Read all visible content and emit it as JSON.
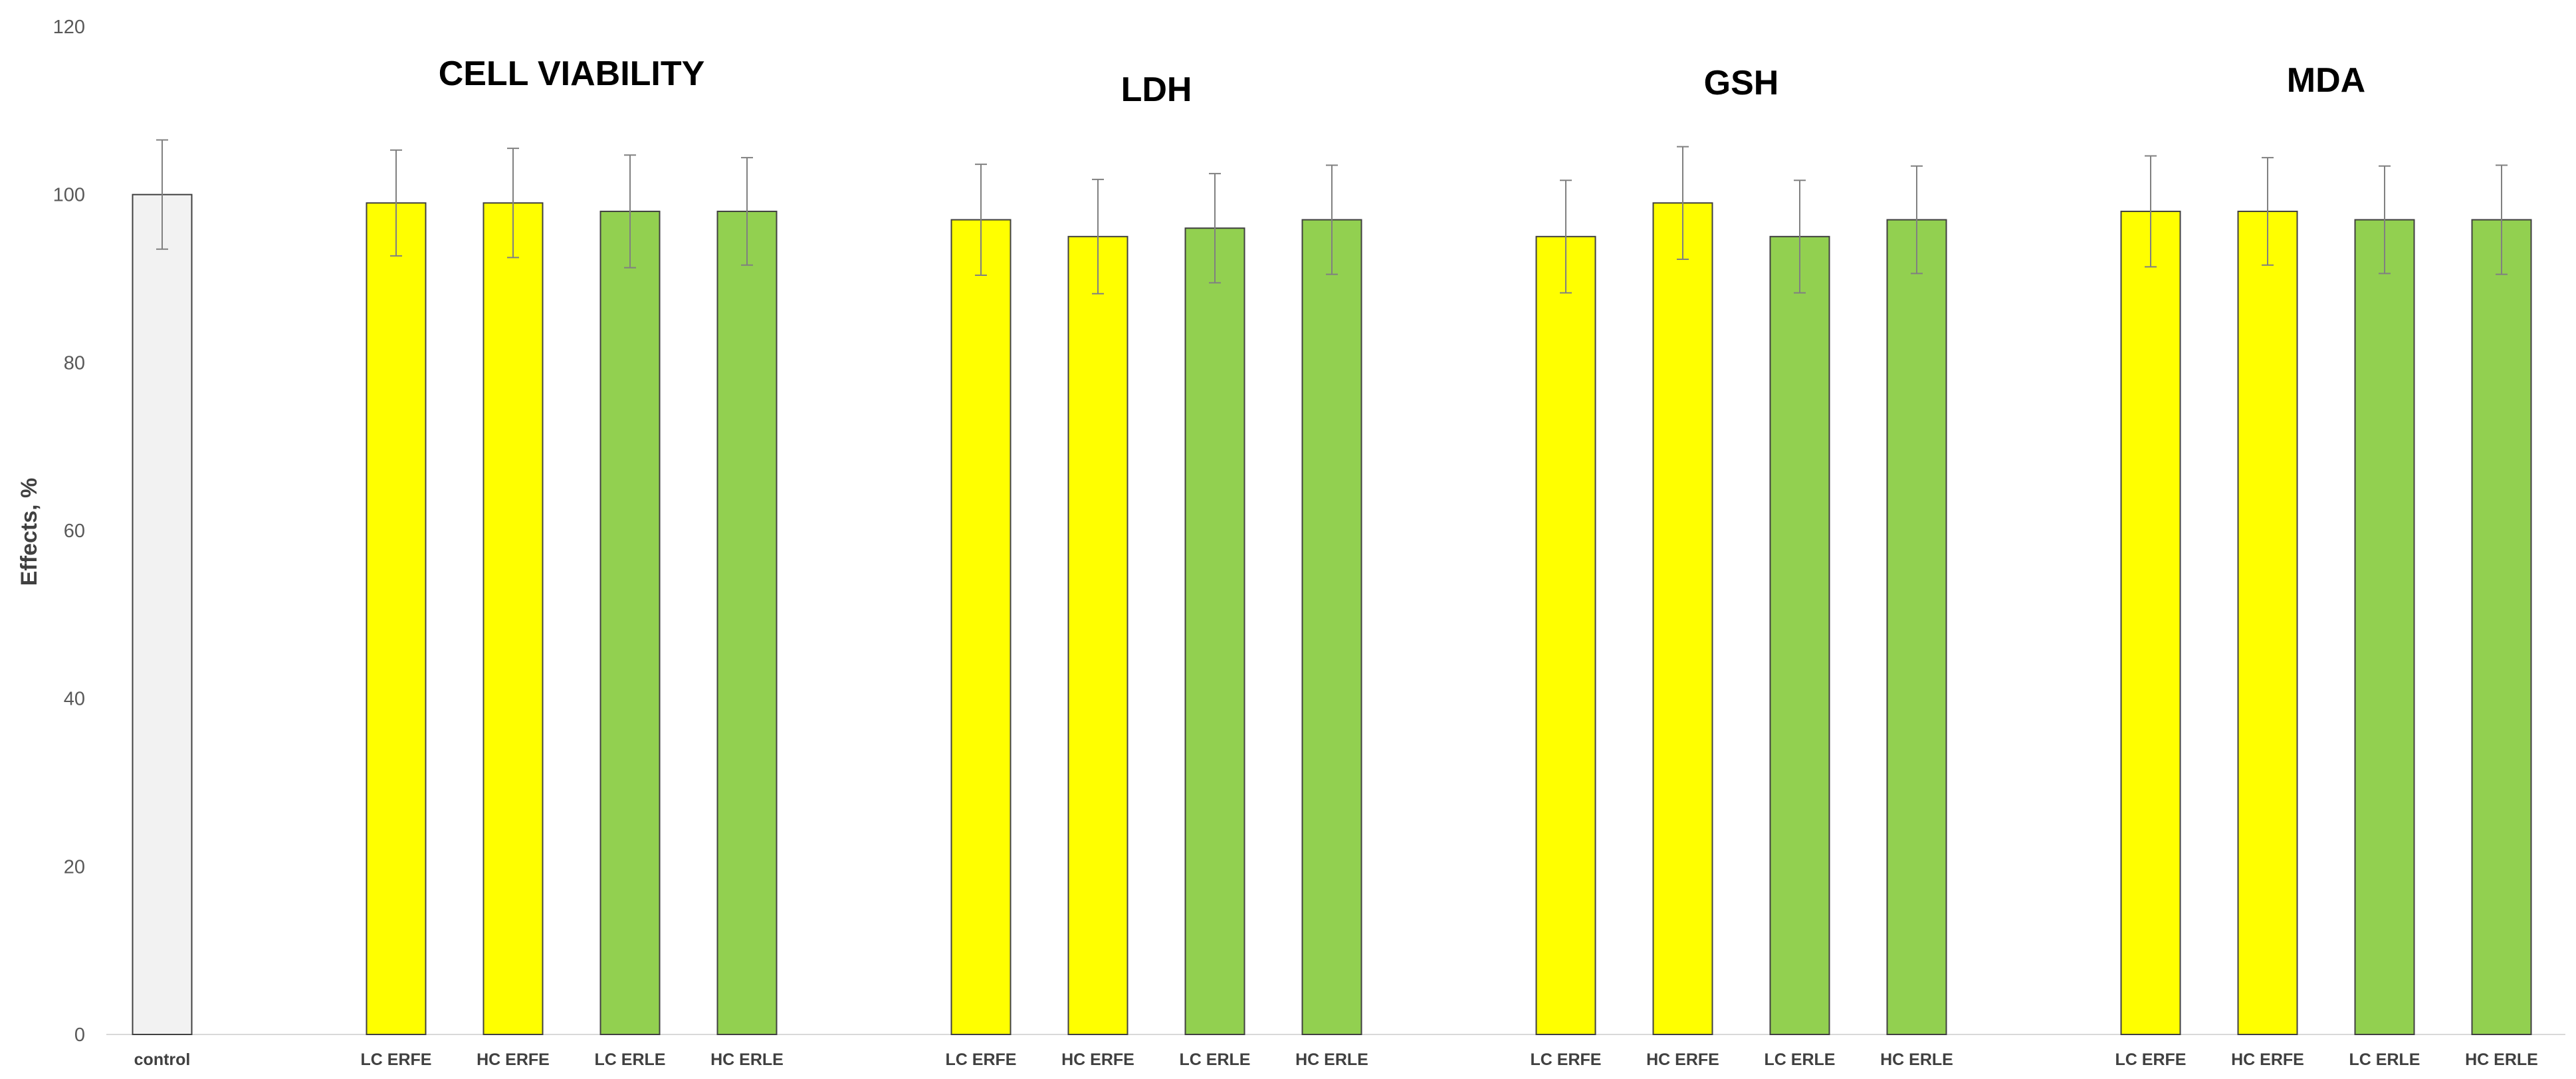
{
  "chart_data": {
    "type": "bar",
    "ylabel": "Effects, %",
    "ylim": [
      0,
      120
    ],
    "yticks": [
      0,
      20,
      40,
      60,
      80,
      100,
      120
    ],
    "grid": false,
    "colors": {
      "control": "#f2f2f2",
      "yellow": "#ffff00",
      "green": "#92d050",
      "outline": "#404040",
      "errorbar": "#808080"
    },
    "groups": [
      {
        "title": "",
        "bars": [
          {
            "label": "control",
            "value": 100,
            "error": 6.5,
            "color": "control"
          }
        ]
      },
      {
        "title": "CELL VIABILITY",
        "bars": [
          {
            "label": "LC ERFE",
            "value": 99,
            "error": 6.3,
            "color": "yellow"
          },
          {
            "label": "HC ERFE",
            "value": 99,
            "error": 6.5,
            "color": "yellow"
          },
          {
            "label": "LC ERLE",
            "value": 98,
            "error": 6.7,
            "color": "green"
          },
          {
            "label": "HC ERLE",
            "value": 98,
            "error": 6.4,
            "color": "green"
          }
        ]
      },
      {
        "title": "LDH",
        "bars": [
          {
            "label": "LC ERFE",
            "value": 97,
            "error": 6.6,
            "color": "yellow"
          },
          {
            "label": "HC ERFE",
            "value": 95,
            "error": 6.8,
            "color": "yellow"
          },
          {
            "label": "LC ERLE",
            "value": 96,
            "error": 6.5,
            "color": "green"
          },
          {
            "label": "HC ERLE",
            "value": 97,
            "error": 6.5,
            "color": "green"
          }
        ]
      },
      {
        "title": "GSH",
        "bars": [
          {
            "label": "LC ERFE",
            "value": 95,
            "error": 6.7,
            "color": "yellow"
          },
          {
            "label": "HC ERFE",
            "value": 99,
            "error": 6.7,
            "color": "yellow"
          },
          {
            "label": "LC ERLE",
            "value": 95,
            "error": 6.7,
            "color": "green"
          },
          {
            "label": "HC ERLE",
            "value": 97,
            "error": 6.4,
            "color": "green"
          }
        ]
      },
      {
        "title": "MDA",
        "bars": [
          {
            "label": "LC ERFE",
            "value": 98,
            "error": 6.6,
            "color": "yellow"
          },
          {
            "label": "HC ERFE",
            "value": 98,
            "error": 6.4,
            "color": "yellow"
          },
          {
            "label": "LC ERLE",
            "value": 97,
            "error": 6.4,
            "color": "green"
          },
          {
            "label": "HC ERLE",
            "value": 97,
            "error": 6.5,
            "color": "green"
          }
        ]
      }
    ]
  }
}
